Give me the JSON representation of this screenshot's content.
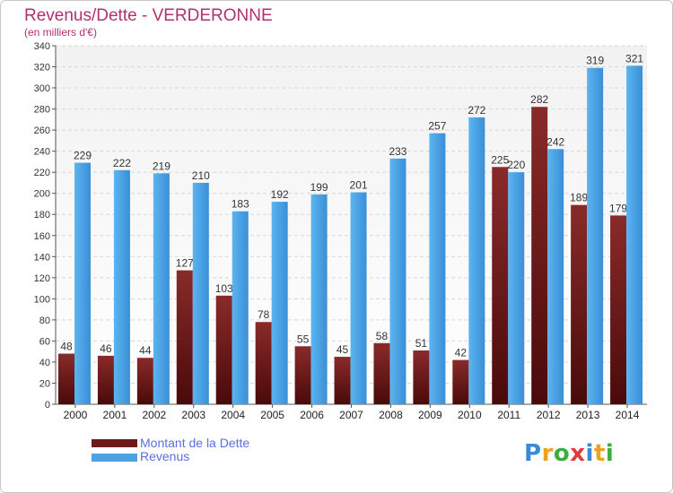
{
  "chart_data": {
    "type": "bar",
    "title": "Revenus/Dette - VERDERONNE",
    "subtitle": "(en milliers d'€)",
    "categories": [
      "2000",
      "2001",
      "2002",
      "2003",
      "2004",
      "2005",
      "2006",
      "2007",
      "2008",
      "2009",
      "2010",
      "2011",
      "2012",
      "2013",
      "2014"
    ],
    "series": [
      {
        "name": "Montant de la Dette",
        "color": "#6e1a1a",
        "values": [
          48,
          46,
          44,
          127,
          103,
          78,
          55,
          45,
          58,
          51,
          42,
          225,
          282,
          189,
          179
        ]
      },
      {
        "name": "Revenus",
        "color": "#4aa3e3",
        "values": [
          229,
          222,
          219,
          210,
          183,
          192,
          199,
          201,
          233,
          257,
          272,
          220,
          242,
          319,
          321
        ]
      }
    ],
    "ylim": [
      0,
      340
    ],
    "yticks": [
      0,
      20,
      40,
      60,
      80,
      100,
      120,
      140,
      160,
      180,
      200,
      220,
      240,
      260,
      280,
      300,
      320,
      340
    ],
    "grid": true,
    "legend": "bottom-left"
  },
  "logo": {
    "letters": [
      "P",
      "r",
      "o",
      "x",
      "i",
      "t",
      "i"
    ],
    "colors": [
      "#3a8ad8",
      "#f0a020",
      "#3ab03a",
      "#e03a3a",
      "#3a8ad8",
      "#f0a020",
      "#3ab03a"
    ]
  }
}
